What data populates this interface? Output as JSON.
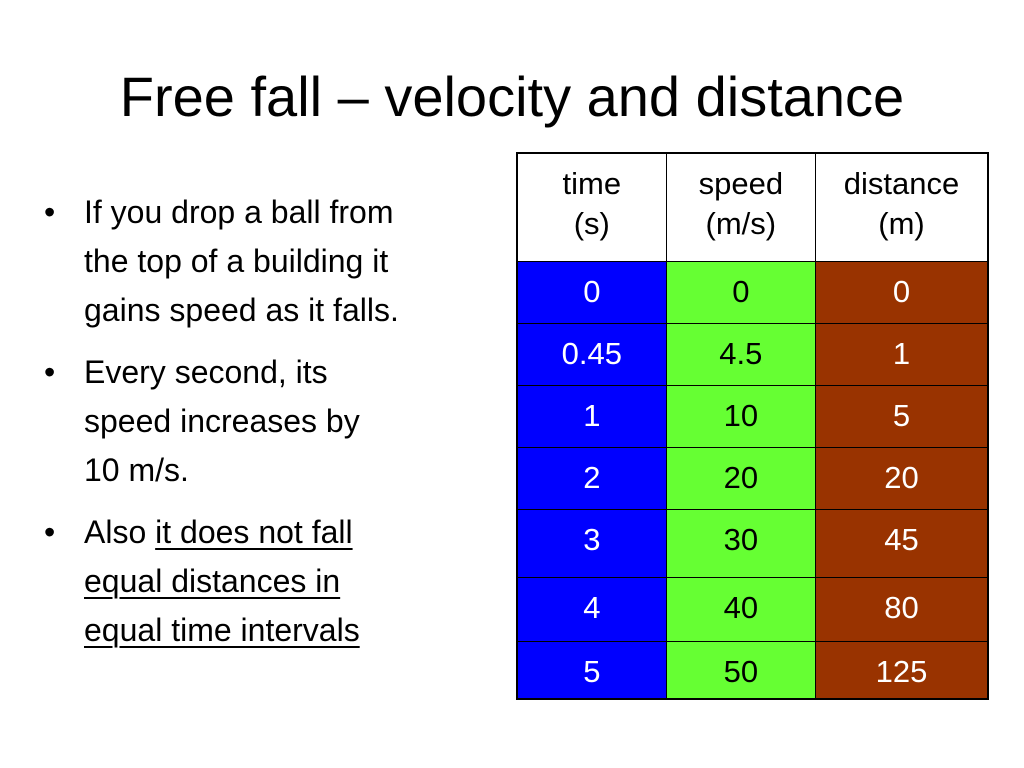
{
  "slide": {
    "title": "Free fall – velocity and distance",
    "bullets": [
      {
        "marker": "•",
        "lines": [
          "If you drop a ball from",
          "the top of a building it",
          "gains speed as it falls."
        ]
      },
      {
        "marker": "•",
        "lines": [
          "Every second, its",
          "speed increases by",
          "10 m/s."
        ]
      },
      {
        "marker": "•",
        "prefix": "Also ",
        "underlined_lines": [
          "it does not fall",
          "equal distances in",
          "equal time intervals"
        ]
      }
    ]
  },
  "table": {
    "headers": [
      {
        "line1": "time",
        "line2": "(s)"
      },
      {
        "line1": "speed",
        "line2": "(m/s)"
      },
      {
        "line1": "distance",
        "line2": "(m)"
      }
    ],
    "rows": [
      [
        "0",
        "0",
        "0"
      ],
      [
        "0.45",
        "4.5",
        "1"
      ],
      [
        "1",
        "10",
        "5"
      ],
      [
        "2",
        "20",
        "20"
      ],
      [
        "3",
        "30",
        "45"
      ],
      [
        "4",
        "40",
        "80"
      ],
      [
        "5",
        "50",
        "125"
      ]
    ],
    "column_colors": {
      "time": "#0000ff",
      "speed": "#66ff33",
      "distance": "#993300"
    }
  }
}
